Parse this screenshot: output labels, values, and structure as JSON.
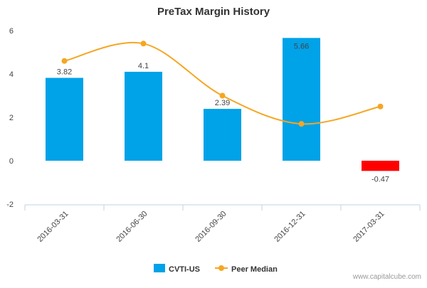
{
  "chart_data": {
    "type": "bar",
    "title": "PreTax Margin History",
    "categories": [
      "2016-03-31",
      "2016-06-30",
      "2016-09-30",
      "2016-12-31",
      "2017-03-31"
    ],
    "series": [
      {
        "name": "CVTI-US",
        "type": "bar",
        "values": [
          3.82,
          4.1,
          2.39,
          5.66,
          -0.47
        ],
        "labels": [
          "3.82",
          "4.1",
          "2.39",
          "5.66",
          "-0.47"
        ],
        "color": "#00a2e8",
        "negative_color": "#ff0000"
      },
      {
        "name": "Peer Median",
        "type": "line",
        "values": [
          4.6,
          5.4,
          3.0,
          1.7,
          2.5
        ],
        "color": "#f5a623"
      }
    ],
    "y_ticks": [
      "6",
      "4",
      "2",
      "0",
      "-2"
    ],
    "ylim": [
      -2,
      6
    ],
    "grid": false,
    "legend_position": "bottom-center"
  },
  "credit": "www.capitalcube.com"
}
